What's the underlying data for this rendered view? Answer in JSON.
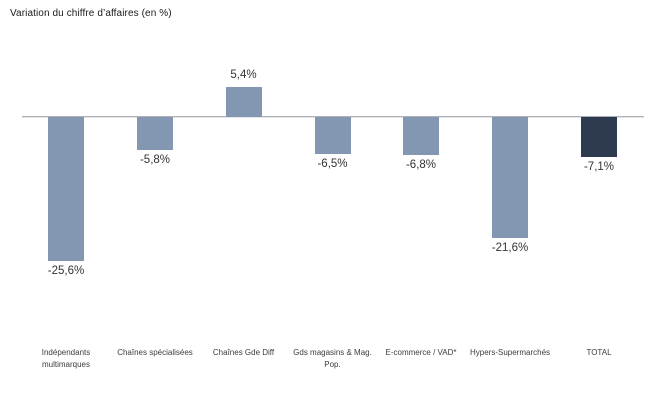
{
  "chart_data": {
    "type": "bar",
    "title": "Variation du chiffre d’affaires (en %)",
    "xlabel": "",
    "ylabel": "",
    "categories": [
      "Indépendants multimarques",
      "Chaînes spécialisées",
      "Chaînes Gde Diff",
      "Gds magasins & Mag. Pop.",
      "E-commerce / VAD*",
      "Hypers-Supermarchés",
      "TOTAL"
    ],
    "values": [
      -25.6,
      -5.8,
      5.4,
      -6.5,
      -6.8,
      -21.6,
      -7.1
    ],
    "value_labels": [
      "-25,6%",
      "-5,8%",
      "5,4%",
      "-6,5%",
      "-6,8%",
      "-21,6%",
      "-7,1%"
    ],
    "ylim": [
      -27,
      7
    ],
    "grid": false,
    "legend": "none",
    "colors": {
      "bar": "#8497B2",
      "total_bar": "#2D3A50",
      "axis": "#AEB2B8",
      "text": "#333333"
    }
  }
}
